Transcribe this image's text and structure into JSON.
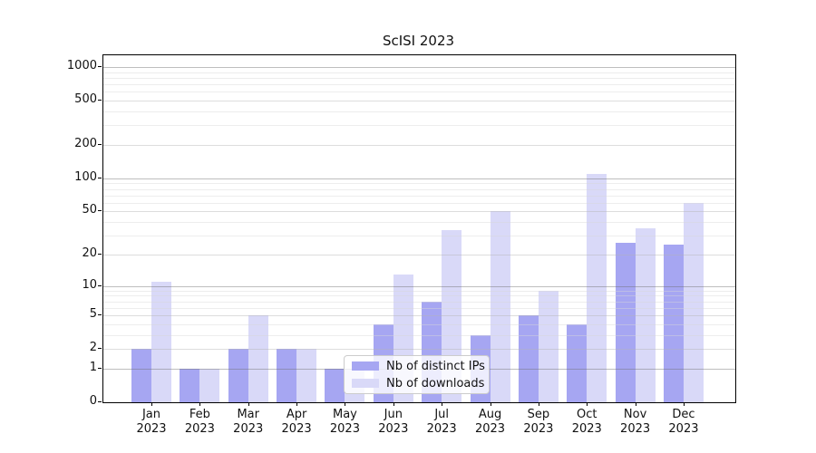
{
  "title": "ScISI 2023",
  "chart_data": {
    "type": "bar",
    "title": "ScISI 2023",
    "categories": [
      "Jan",
      "Feb",
      "Mar",
      "Apr",
      "May",
      "Jun",
      "Jul",
      "Aug",
      "Sep",
      "Oct",
      "Nov",
      "Dec"
    ],
    "category_year": "2023",
    "series": [
      {
        "name": "Nb of distinct IPs",
        "color": "#a6a6f2",
        "values": [
          2,
          1,
          2,
          2,
          1,
          4,
          7,
          3,
          5,
          4,
          26,
          25
        ]
      },
      {
        "name": "Nb of downloads",
        "color": "#d9d9f8",
        "values": [
          11,
          1,
          5,
          2,
          1,
          13,
          34,
          50,
          9,
          110,
          35,
          60
        ]
      }
    ],
    "yscale": "log1p",
    "yticks": [
      0,
      1,
      2,
      5,
      10,
      20,
      50,
      100,
      200,
      500,
      1000
    ],
    "emphasized_gridlines": [
      1,
      10,
      100,
      1000
    ],
    "minor_gridlines": [
      3,
      4,
      6,
      7,
      8,
      9,
      30,
      40,
      60,
      70,
      80,
      90,
      300,
      400,
      600,
      700,
      800,
      900
    ],
    "ylim": [
      0,
      1280
    ],
    "xlabel": "",
    "ylabel": "",
    "grid": true,
    "legend_position": "lower-center"
  },
  "legend": {
    "item1": "Nb of distinct IPs",
    "item2": "Nb of downloads"
  }
}
